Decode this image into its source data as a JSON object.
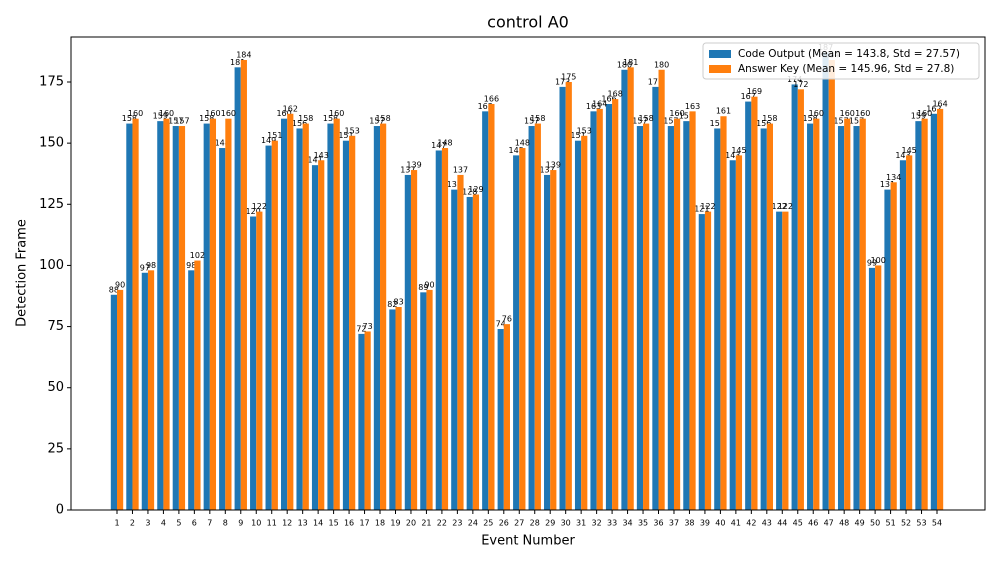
{
  "chart_data": {
    "type": "bar",
    "title": "control A0",
    "xlabel": "Event Number",
    "ylabel": "Detection Frame",
    "categories": [
      "1",
      "2",
      "3",
      "4",
      "5",
      "6",
      "7",
      "8",
      "9",
      "10",
      "11",
      "12",
      "13",
      "14",
      "15",
      "16",
      "17",
      "18",
      "19",
      "20",
      "21",
      "22",
      "23",
      "24",
      "25",
      "26",
      "27",
      "28",
      "29",
      "30",
      "31",
      "32",
      "33",
      "34",
      "35",
      "36",
      "37",
      "38",
      "39",
      "40",
      "41",
      "42",
      "43",
      "44",
      "45",
      "46",
      "47",
      "48",
      "49",
      "50",
      "51",
      "52",
      "53",
      "54"
    ],
    "series": [
      {
        "name": "Code Output (Mean = 143.8, Std = 27.57)",
        "color": "#1f77b4",
        "values": [
          88,
          158,
          97,
          159,
          157,
          98,
          158,
          148,
          181,
          120,
          149,
          160,
          156,
          141,
          158,
          151,
          72,
          157,
          82,
          137,
          89,
          147,
          131,
          128,
          163,
          74,
          145,
          157,
          137,
          173,
          151,
          163,
          166,
          180,
          157,
          173,
          157,
          159,
          121,
          156,
          143,
          167,
          156,
          122,
          174,
          158,
          187,
          157,
          157,
          99,
          131,
          143,
          159,
          162
        ]
      },
      {
        "name": "Answer Key (Mean = 145.96, Std = 27.8)",
        "color": "#ff7f0e",
        "values": [
          90,
          160,
          98,
          160,
          157,
          102,
          160,
          160,
          184,
          122,
          151,
          162,
          158,
          143,
          160,
          153,
          73,
          158,
          83,
          139,
          90,
          148,
          137,
          129,
          166,
          76,
          148,
          158,
          139,
          175,
          153,
          164,
          168,
          181,
          158,
          180,
          160,
          163,
          122,
          161,
          145,
          169,
          158,
          122,
          172,
          160,
          184,
          160,
          160,
          100,
          134,
          145,
          160,
          164
        ]
      }
    ],
    "ylim": [
      0,
      193.4
    ],
    "yticks": [
      0,
      25,
      50,
      75,
      100,
      125,
      150,
      175
    ],
    "legend": "upper right"
  }
}
